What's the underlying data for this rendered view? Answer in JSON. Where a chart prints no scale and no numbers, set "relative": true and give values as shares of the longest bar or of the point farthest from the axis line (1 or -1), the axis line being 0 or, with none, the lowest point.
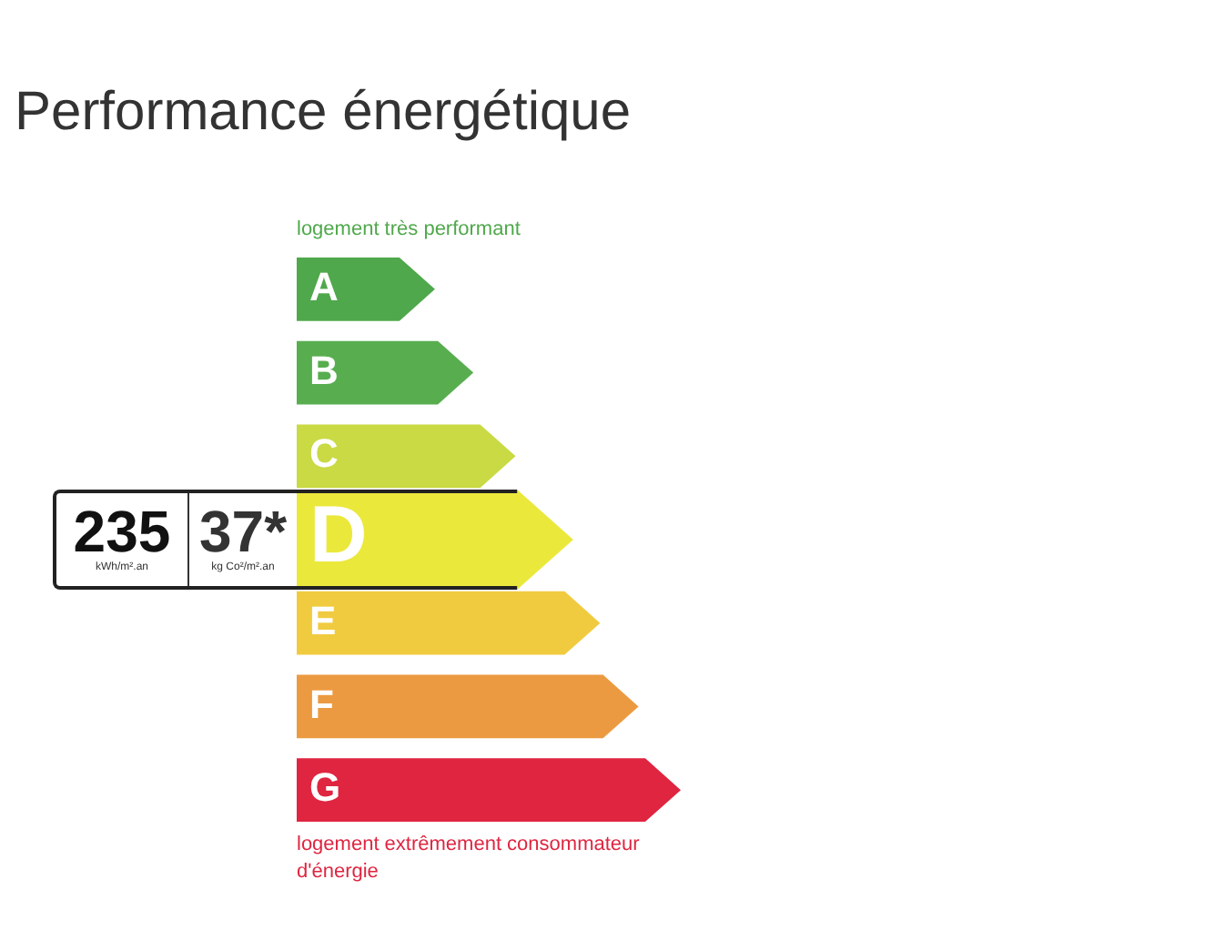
{
  "chart_data": {
    "type": "bar",
    "orientation": "horizontal",
    "relative": true,
    "title": "Performance énergétique",
    "categories": [
      "A",
      "B",
      "C",
      "D",
      "E",
      "F",
      "G"
    ],
    "values": [
      0.36,
      0.46,
      0.57,
      0.72,
      0.79,
      0.89,
      1
    ],
    "colors": [
      "#4fa84b",
      "#58ae4f",
      "#c9da44",
      "#ebe83c",
      "#f1cb3f",
      "#ec9a41",
      "#df2540"
    ],
    "annotations": [
      "logement très performant",
      "235",
      "kWh/m².an",
      "37*",
      "kg Co²/m².an",
      "logement extrêmement consommateur d'énergie"
    ]
  }
}
